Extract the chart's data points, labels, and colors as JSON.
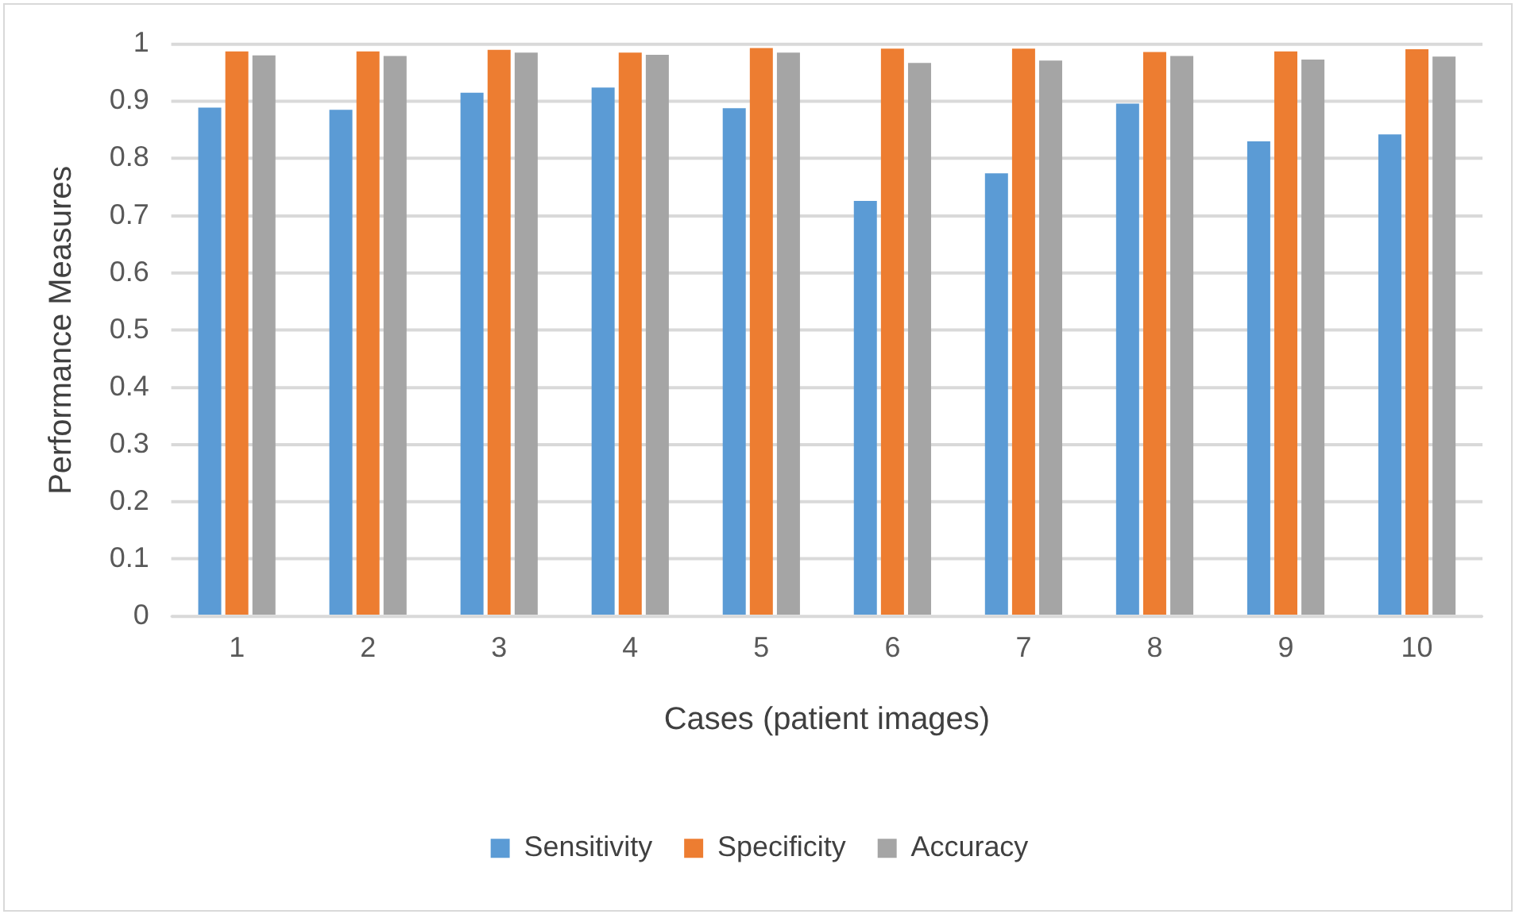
{
  "chart_data": {
    "type": "bar",
    "xlabel": "Cases (patient images)",
    "ylabel": "Performance Measures",
    "categories": [
      "1",
      "2",
      "3",
      "4",
      "5",
      "6",
      "7",
      "8",
      "9",
      "10"
    ],
    "series": [
      {
        "name": "Sensitivity",
        "color": "#5b9bd5",
        "values": [
          0.889,
          0.885,
          0.915,
          0.924,
          0.888,
          0.726,
          0.774,
          0.896,
          0.83,
          0.842
        ]
      },
      {
        "name": "Specificity",
        "color": "#ed7d31",
        "values": [
          0.987,
          0.987,
          0.99,
          0.985,
          0.993,
          0.992,
          0.992,
          0.986,
          0.987,
          0.991
        ]
      },
      {
        "name": "Accuracy",
        "color": "#a5a5a5",
        "values": [
          0.98,
          0.979,
          0.985,
          0.981,
          0.985,
          0.967,
          0.971,
          0.979,
          0.973,
          0.978
        ]
      }
    ],
    "ylim": [
      0,
      1
    ],
    "yticks": [
      0,
      0.1,
      0.2,
      0.3,
      0.4,
      0.5,
      0.6,
      0.7,
      0.8,
      0.9,
      1
    ],
    "grid": "y",
    "legend": "bottom"
  }
}
